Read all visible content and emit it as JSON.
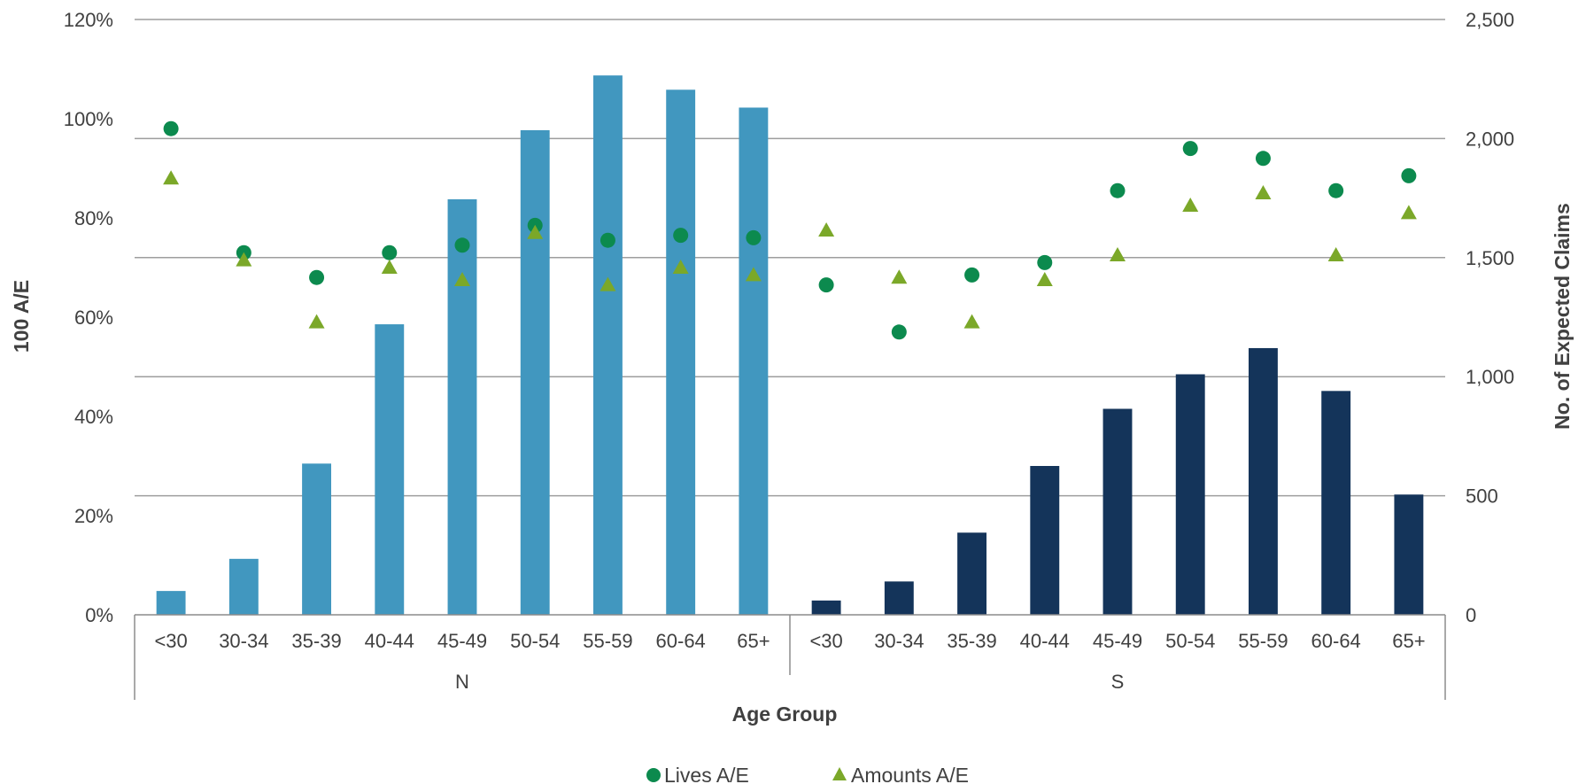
{
  "chart_data": {
    "type": "bar",
    "xlabel": "Age Group",
    "ylabel_left": "100 A/E",
    "ylabel_right": "No. of Expected Claims",
    "y_left_ticks": [
      "0%",
      "20%",
      "40%",
      "60%",
      "80%",
      "100%",
      "120%"
    ],
    "y_left_range": [
      0,
      120
    ],
    "y_right_ticks": [
      "0",
      "500",
      "1,000",
      "1,500",
      "2,000",
      "2,500"
    ],
    "y_right_range": [
      0,
      2500
    ],
    "grid": true,
    "legend_position": "bottom",
    "categories": [
      "<30",
      "30-34",
      "35-39",
      "40-44",
      "45-49",
      "50-54",
      "55-59",
      "60-64",
      "65+"
    ],
    "groups": [
      {
        "label": "N",
        "bar_color": "#4197bf",
        "claims": [
          100,
          235,
          635,
          1220,
          1745,
          2035,
          2265,
          2205,
          2130
        ],
        "lives_ae": [
          98,
          73,
          68,
          73,
          74.5,
          78.5,
          75.5,
          76.5,
          76
        ],
        "amounts_ae": [
          88,
          71.5,
          59,
          70,
          67.5,
          77,
          66.5,
          70,
          68.5
        ]
      },
      {
        "label": "S",
        "bar_color": "#14345a",
        "claims": [
          60,
          140,
          345,
          625,
          865,
          1010,
          1120,
          940,
          505
        ],
        "lives_ae": [
          66.5,
          57,
          68.5,
          71,
          85.5,
          94,
          92,
          85.5,
          88.5
        ],
        "amounts_ae": [
          77.5,
          68,
          59,
          67.5,
          72.5,
          82.5,
          85,
          72.5,
          81
        ]
      }
    ],
    "series": [
      {
        "name": "Lives A/E",
        "marker": "circle",
        "color": "#0c8a4e"
      },
      {
        "name": "Amounts A/E",
        "marker": "triangle",
        "color": "#7ba829"
      }
    ]
  }
}
